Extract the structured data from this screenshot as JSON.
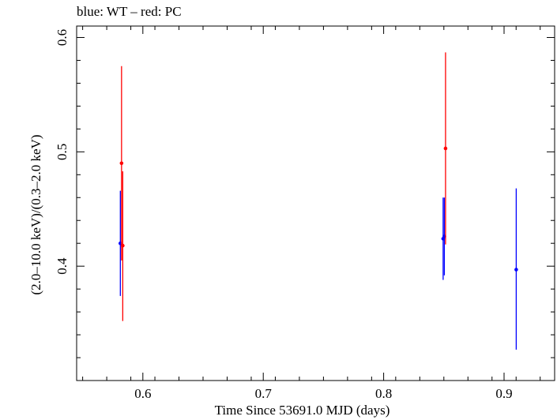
{
  "chart_data": {
    "type": "scatter",
    "title": "blue: WT – red: PC",
    "xlabel": "Time Since 53691.0 MJD (days)",
    "ylabel": "(2.0–10.0 keV)/(0.3–2.0 keV)",
    "xlim": [
      0.545,
      0.942
    ],
    "ylim": [
      0.3,
      0.61
    ],
    "xticks": [
      0.6,
      0.7,
      0.8,
      0.9
    ],
    "xtick_labels": [
      "0.6",
      "0.7",
      "0.8",
      "0.9"
    ],
    "yticks": [
      0.4,
      0.5,
      0.6
    ],
    "ytick_labels": [
      "0.4",
      "0.5",
      "0.6"
    ],
    "grid": false,
    "series": [
      {
        "color": "#0000ff",
        "points": [
          {
            "x": 0.5813,
            "y": 0.42,
            "ylo": 0.374,
            "yhi": 0.466
          },
          {
            "x": 0.8494,
            "y": 0.424,
            "ylo": 0.388,
            "yhi": 0.46
          },
          {
            "x": 0.8504,
            "y": 0.426,
            "ylo": 0.392,
            "yhi": 0.46
          },
          {
            "x": 0.9101,
            "y": 0.397,
            "ylo": 0.327,
            "yhi": 0.468
          }
        ]
      },
      {
        "color": "#ff0000",
        "points": [
          {
            "x": 0.5823,
            "y": 0.49,
            "ylo": 0.405,
            "yhi": 0.575
          },
          {
            "x": 0.5833,
            "y": 0.418,
            "ylo": 0.352,
            "yhi": 0.483
          },
          {
            "x": 0.8514,
            "y": 0.503,
            "ylo": 0.419,
            "yhi": 0.587
          }
        ]
      }
    ]
  }
}
